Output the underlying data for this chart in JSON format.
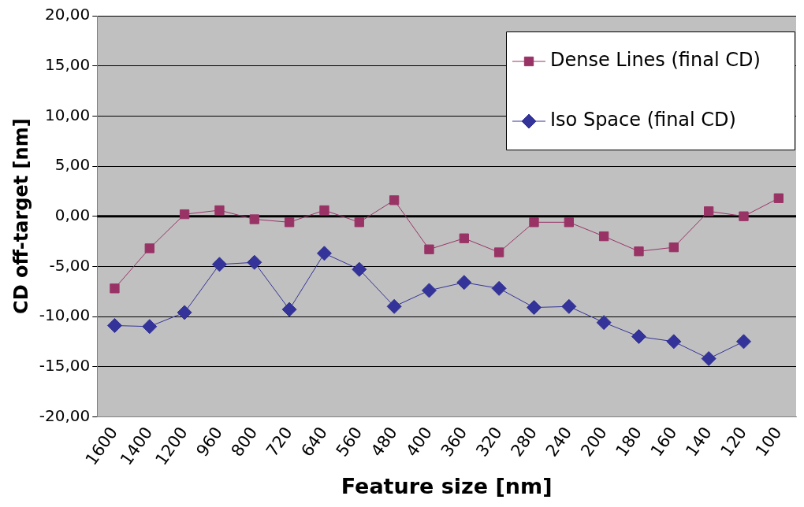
{
  "chart_data": {
    "type": "line",
    "xlabel": "Feature size [nm]",
    "ylabel": "CD off-target [nm]",
    "categories": [
      "1600",
      "1400",
      "1200",
      "960",
      "800",
      "720",
      "640",
      "560",
      "480",
      "400",
      "360",
      "320",
      "280",
      "240",
      "200",
      "180",
      "160",
      "140",
      "120",
      "100"
    ],
    "series": [
      {
        "name": "Dense Lines (final CD)",
        "color": "#993366",
        "marker": "square",
        "values": [
          -7.2,
          -3.2,
          0.2,
          0.6,
          -0.3,
          -0.6,
          0.6,
          -0.6,
          1.6,
          -3.3,
          -2.2,
          -3.6,
          -0.6,
          -0.6,
          -2.0,
          -3.5,
          -3.1,
          0.5,
          0.0,
          1.8
        ]
      },
      {
        "name": "Iso Space (final CD)",
        "color": "#333399",
        "marker": "diamond",
        "values": [
          -10.9,
          -11.0,
          -9.6,
          -4.8,
          -4.6,
          -9.3,
          -3.7,
          -5.3,
          -9.0,
          -7.4,
          -6.6,
          -7.2,
          -9.1,
          -9.0,
          -10.6,
          -12.0,
          -12.5,
          -14.2,
          -12.5,
          null
        ]
      }
    ],
    "ylim": [
      -20,
      20
    ],
    "yticks": [
      {
        "value": -20,
        "label": "-20,00"
      },
      {
        "value": -15,
        "label": "-15,00"
      },
      {
        "value": -10,
        "label": "-10,00"
      },
      {
        "value": -5,
        "label": "-5,00"
      },
      {
        "value": 0,
        "label": "0,00"
      },
      {
        "value": 5,
        "label": "5,00"
      },
      {
        "value": 10,
        "label": "10,00"
      },
      {
        "value": 15,
        "label": "15,00"
      },
      {
        "value": 20,
        "label": "20,00"
      }
    ],
    "grid": "y",
    "legend": "top right",
    "ref_lines": [
      {
        "axis": "y",
        "value": 0,
        "color": "#000000"
      }
    ]
  }
}
